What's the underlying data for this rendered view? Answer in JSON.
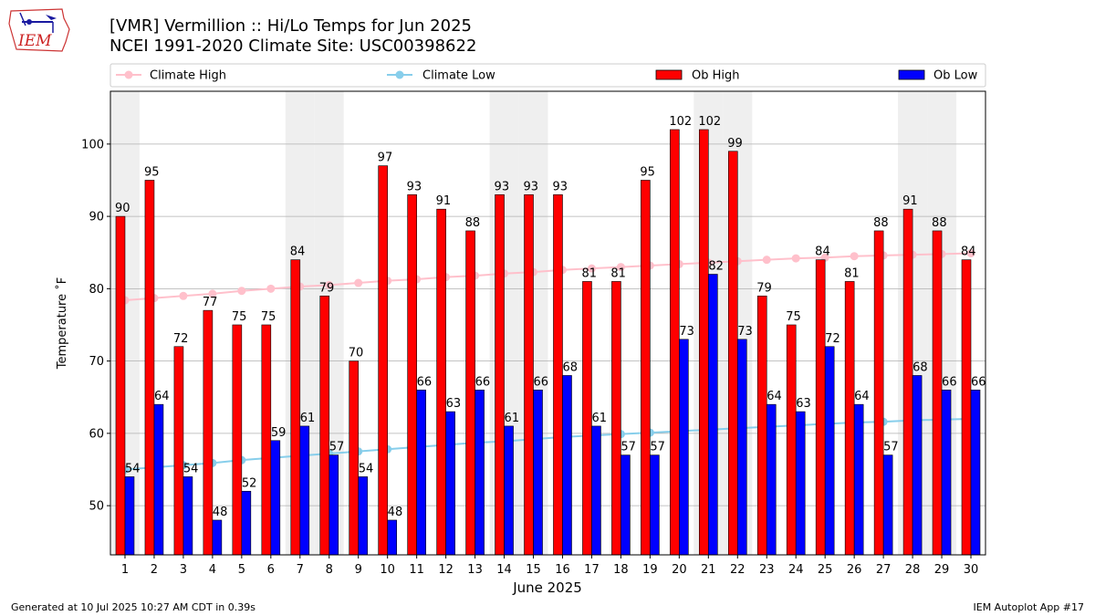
{
  "title_line1": "[VMR] Vermillion :: Hi/Lo Temps for Jun 2025",
  "title_line2": "NCEI 1991-2020 Climate Site: USC00398622",
  "logo_text": "IEM",
  "footer_left": "Generated at 10 Jul 2025 10:27 AM CDT in 0.39s",
  "footer_right": "IEM Autoplot App #17",
  "colors": {
    "ob_high": "#ff0000",
    "ob_low": "#0000ff",
    "climate_high": "#ffc0cb",
    "climate_low": "#87ceeb",
    "weekend_shade": "#efefef",
    "grid": "#b0b0b0"
  },
  "chart_data": {
    "type": "bar",
    "xlabel": "June 2025",
    "ylabel": "Temperature ˚F",
    "ylim": [
      43.2,
      107.3
    ],
    "yticks": [
      50,
      60,
      70,
      80,
      90,
      100
    ],
    "grid": "horizontal",
    "legend_position": "top",
    "categories": [
      "1",
      "2",
      "3",
      "4",
      "5",
      "6",
      "7",
      "8",
      "9",
      "10",
      "11",
      "12",
      "13",
      "14",
      "15",
      "16",
      "17",
      "18",
      "19",
      "20",
      "21",
      "22",
      "23",
      "24",
      "25",
      "26",
      "27",
      "28",
      "29",
      "30"
    ],
    "shaded_days": [
      1,
      7,
      8,
      14,
      15,
      21,
      22,
      28,
      29
    ],
    "series": [
      {
        "name": "Climate High",
        "kind": "line",
        "values": [
          78.4,
          78.7,
          79.0,
          79.3,
          79.7,
          80.0,
          80.3,
          80.5,
          80.8,
          81.1,
          81.3,
          81.6,
          81.8,
          82.1,
          82.3,
          82.6,
          82.8,
          83.0,
          83.2,
          83.4,
          83.6,
          83.8,
          84.0,
          84.2,
          84.3,
          84.5,
          84.6,
          84.7,
          84.8,
          84.9
        ]
      },
      {
        "name": "Climate Low",
        "kind": "line",
        "values": [
          55.0,
          55.3,
          55.6,
          55.9,
          56.3,
          56.6,
          56.9,
          57.2,
          57.5,
          57.8,
          58.1,
          58.4,
          58.7,
          58.9,
          59.2,
          59.5,
          59.7,
          59.9,
          60.1,
          60.3,
          60.5,
          60.7,
          60.9,
          61.1,
          61.3,
          61.5,
          61.6,
          61.8,
          61.9,
          62.0
        ]
      },
      {
        "name": "Ob High",
        "kind": "bar",
        "values": [
          90,
          95,
          72,
          77,
          75,
          75,
          84,
          79,
          70,
          97,
          93,
          91,
          88,
          93,
          93,
          93,
          81,
          81,
          95,
          102,
          102,
          99,
          79,
          75,
          84,
          81,
          88,
          91,
          88,
          84
        ]
      },
      {
        "name": "Ob Low",
        "kind": "bar",
        "values": [
          54,
          64,
          54,
          48,
          52,
          59,
          61,
          57,
          54,
          48,
          66,
          63,
          66,
          61,
          66,
          68,
          61,
          57,
          57,
          73,
          82,
          73,
          64,
          63,
          72,
          64,
          57,
          68,
          66,
          66
        ]
      }
    ]
  }
}
